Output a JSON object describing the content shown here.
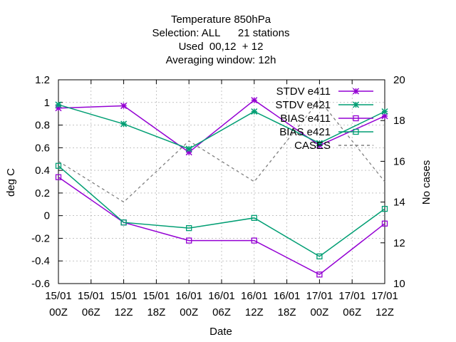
{
  "chart_data": {
    "type": "line",
    "title_lines": [
      "Temperature 850hPa",
      "Selection: ALL      21 stations",
      "Used  00,12  + 12",
      "Averaging window: 12h"
    ],
    "xlabel": "Date",
    "ylabel": "deg C",
    "y2label": "No cases",
    "ylim": [
      -0.6,
      1.2
    ],
    "y_ticks": [
      "-0.6",
      "-0.4",
      "-0.2",
      "0",
      "0.2",
      "0.4",
      "0.6",
      "0.8",
      "1",
      "1.2"
    ],
    "y2lim": [
      10,
      20
    ],
    "y2_ticks": [
      "10",
      "12",
      "14",
      "16",
      "18",
      "20"
    ],
    "x_ticks": [
      [
        "15/01",
        "00Z"
      ],
      [
        "15/01",
        "06Z"
      ],
      [
        "15/01",
        "12Z"
      ],
      [
        "15/01",
        "18Z"
      ],
      [
        "16/01",
        "00Z"
      ],
      [
        "16/01",
        "06Z"
      ],
      [
        "16/01",
        "12Z"
      ],
      [
        "16/01",
        "18Z"
      ],
      [
        "17/01",
        "00Z"
      ],
      [
        "17/01",
        "06Z"
      ],
      [
        "17/01",
        "12Z"
      ]
    ],
    "x": [
      "15/01 00Z",
      "15/01 12Z",
      "16/01 00Z",
      "16/01 12Z",
      "17/01 00Z",
      "17/01 12Z"
    ],
    "grid": true,
    "legend_position": "top-right",
    "series": [
      {
        "name": "STDV e411",
        "axis": "y1",
        "style": "star",
        "color": "#9400d3",
        "values": [
          0.95,
          0.97,
          0.56,
          1.02,
          0.62,
          0.88
        ]
      },
      {
        "name": "STDV e421",
        "axis": "y1",
        "style": "star",
        "color": "#009e73",
        "values": [
          0.98,
          0.81,
          0.59,
          0.92,
          0.64,
          0.92
        ]
      },
      {
        "name": "BIAS e411",
        "axis": "y1",
        "style": "square",
        "color": "#9400d3",
        "values": [
          0.34,
          -0.06,
          -0.22,
          -0.22,
          -0.52,
          -0.07
        ]
      },
      {
        "name": "BIAS e421",
        "axis": "y1",
        "style": "square",
        "color": "#009e73",
        "values": [
          0.44,
          -0.06,
          -0.11,
          -0.02,
          -0.36,
          0.06
        ]
      },
      {
        "name": "CASES",
        "axis": "y2",
        "style": "dash",
        "color": "#808080",
        "values": [
          16,
          14,
          17,
          15,
          19,
          15
        ]
      }
    ]
  }
}
